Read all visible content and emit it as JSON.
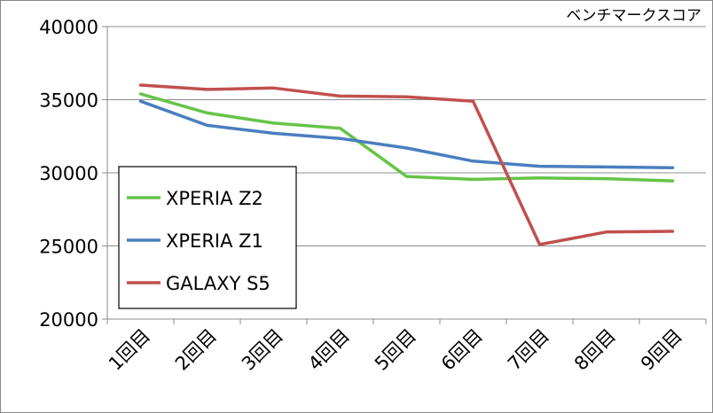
{
  "chart_data": {
    "type": "line",
    "title": "",
    "xlabel": "",
    "ylabel": "ベンチマークスコア",
    "ylim": [
      20000,
      40000
    ],
    "yticks": [
      40000,
      35000,
      30000,
      25000,
      20000
    ],
    "categories": [
      "1回目",
      "2回目",
      "3回目",
      "4回目",
      "5回目",
      "6回目",
      "7回目",
      "8回目",
      "9回目"
    ],
    "legend_position": "left-middle",
    "series": [
      {
        "name": "XPERIA Z2",
        "color": "#66c34a",
        "values": [
          35400,
          34100,
          33400,
          33050,
          29750,
          29550,
          29650,
          29600,
          29450
        ]
      },
      {
        "name": "XPERIA Z1",
        "color": "#4a7ebf",
        "values": [
          34900,
          33250,
          32700,
          32350,
          31700,
          30800,
          30450,
          30400,
          30350
        ]
      },
      {
        "name": "GALAXY S5",
        "color": "#c0504d",
        "values": [
          36000,
          35700,
          35800,
          35250,
          35200,
          34900,
          25100,
          25950,
          26000
        ]
      }
    ]
  }
}
